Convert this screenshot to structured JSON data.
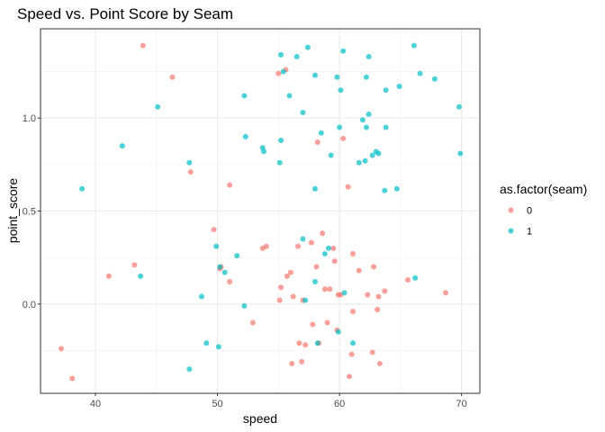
{
  "chart_data": {
    "type": "scatter",
    "title": "Speed vs. Point Score by Seam",
    "xlabel": "speed",
    "ylabel": "point_score",
    "xlim": [
      35.5,
      71.5
    ],
    "ylim": [
      -0.48,
      1.48
    ],
    "x_ticks": [
      40,
      50,
      60,
      70
    ],
    "x_tick_labels": [
      "40",
      "50",
      "60",
      "70"
    ],
    "y_ticks": [
      0.0,
      0.5,
      1.0
    ],
    "y_tick_labels": [
      "0.0",
      "0.5",
      "1.0"
    ],
    "grid": true,
    "legend": {
      "title": "as.factor(seam)",
      "position": "right",
      "entries": [
        {
          "label": "0",
          "color": "#F8766D"
        },
        {
          "label": "1",
          "color": "#00BFC4"
        }
      ]
    },
    "series": [
      {
        "name": "0",
        "color": "#F8766D",
        "points": [
          [
            43.9,
            1.39
          ],
          [
            46.3,
            1.22
          ],
          [
            55.6,
            1.26
          ],
          [
            55.0,
            1.24
          ],
          [
            47.8,
            0.71
          ],
          [
            51.0,
            0.64
          ],
          [
            58.2,
            0.87
          ],
          [
            60.3,
            0.89
          ],
          [
            60.7,
            0.63
          ],
          [
            37.2,
            -0.24
          ],
          [
            38.1,
            -0.4
          ],
          [
            41.1,
            0.15
          ],
          [
            43.2,
            0.21
          ],
          [
            49.7,
            0.4
          ],
          [
            50.2,
            0.19
          ],
          [
            50.3,
            0.2
          ],
          [
            51.0,
            0.12
          ],
          [
            53.7,
            0.3
          ],
          [
            54.0,
            0.31
          ],
          [
            52.9,
            -0.1
          ],
          [
            55.2,
            0.09
          ],
          [
            55.7,
            0.15
          ],
          [
            56.0,
            0.17
          ],
          [
            56.2,
            0.04
          ],
          [
            55.1,
            0.02
          ],
          [
            56.6,
            0.31
          ],
          [
            57.0,
            0.02
          ],
          [
            57.7,
            0.33
          ],
          [
            58.6,
            0.38
          ],
          [
            59.6,
            0.23
          ],
          [
            59.5,
            0.3
          ],
          [
            58.1,
            0.2
          ],
          [
            58.8,
            0.08
          ],
          [
            59.2,
            0.08
          ],
          [
            59.9,
            0.05
          ],
          [
            60.1,
            0.05
          ],
          [
            61.1,
            0.27
          ],
          [
            62.8,
            0.2
          ],
          [
            61.6,
            0.18
          ],
          [
            63.7,
            0.07
          ],
          [
            62.3,
            0.05
          ],
          [
            63.2,
            0.04
          ],
          [
            63.1,
            -0.03
          ],
          [
            61.1,
            -0.04
          ],
          [
            59.0,
            -0.1
          ],
          [
            57.8,
            -0.11
          ],
          [
            59.8,
            -0.14
          ],
          [
            56.7,
            -0.21
          ],
          [
            57.2,
            -0.22
          ],
          [
            58.3,
            -0.21
          ],
          [
            56.1,
            -0.32
          ],
          [
            56.9,
            -0.31
          ],
          [
            61.0,
            -0.27
          ],
          [
            62.7,
            -0.26
          ],
          [
            63.3,
            -0.32
          ],
          [
            60.8,
            -0.39
          ],
          [
            65.6,
            0.13
          ],
          [
            68.7,
            0.06
          ]
        ]
      },
      {
        "name": "1",
        "color": "#00BFC4",
        "points": [
          [
            55.2,
            1.34
          ],
          [
            56.5,
            1.33
          ],
          [
            57.4,
            1.38
          ],
          [
            60.3,
            1.36
          ],
          [
            62.4,
            1.33
          ],
          [
            66.1,
            1.39
          ],
          [
            55.4,
            1.25
          ],
          [
            58.0,
            1.23
          ],
          [
            59.8,
            1.22
          ],
          [
            62.2,
            1.22
          ],
          [
            66.6,
            1.24
          ],
          [
            67.8,
            1.21
          ],
          [
            52.2,
            1.12
          ],
          [
            55.9,
            1.12
          ],
          [
            60.1,
            1.15
          ],
          [
            63.8,
            1.15
          ],
          [
            64.9,
            1.17
          ],
          [
            69.8,
            1.06
          ],
          [
            45.1,
            1.06
          ],
          [
            57.0,
            1.03
          ],
          [
            61.9,
            0.99
          ],
          [
            62.4,
            1.02
          ],
          [
            58.5,
            0.92
          ],
          [
            60.0,
            0.95
          ],
          [
            62.2,
            0.95
          ],
          [
            63.8,
            0.95
          ],
          [
            42.2,
            0.85
          ],
          [
            52.3,
            0.9
          ],
          [
            53.7,
            0.84
          ],
          [
            53.8,
            0.82
          ],
          [
            55.2,
            0.88
          ],
          [
            59.3,
            0.8
          ],
          [
            62.1,
            0.77
          ],
          [
            62.7,
            0.8
          ],
          [
            63.0,
            0.82
          ],
          [
            63.2,
            0.81
          ],
          [
            61.6,
            0.76
          ],
          [
            69.9,
            0.81
          ],
          [
            38.9,
            0.62
          ],
          [
            47.7,
            0.76
          ],
          [
            55.1,
            0.76
          ],
          [
            58.0,
            0.62
          ],
          [
            63.7,
            0.61
          ],
          [
            64.7,
            0.62
          ],
          [
            49.9,
            0.31
          ],
          [
            51.6,
            0.26
          ],
          [
            57.0,
            0.35
          ],
          [
            58.8,
            0.27
          ],
          [
            59.1,
            0.3
          ],
          [
            43.7,
            0.15
          ],
          [
            50.2,
            0.2
          ],
          [
            50.6,
            0.17
          ],
          [
            58.0,
            0.12
          ],
          [
            66.2,
            0.14
          ],
          [
            48.7,
            0.04
          ],
          [
            52.2,
            -0.01
          ],
          [
            57.2,
            0.02
          ],
          [
            60.4,
            0.06
          ],
          [
            49.1,
            -0.21
          ],
          [
            50.1,
            -0.23
          ],
          [
            58.2,
            -0.21
          ],
          [
            59.9,
            -0.15
          ],
          [
            61.1,
            -0.21
          ],
          [
            47.7,
            -0.35
          ]
        ]
      }
    ]
  }
}
